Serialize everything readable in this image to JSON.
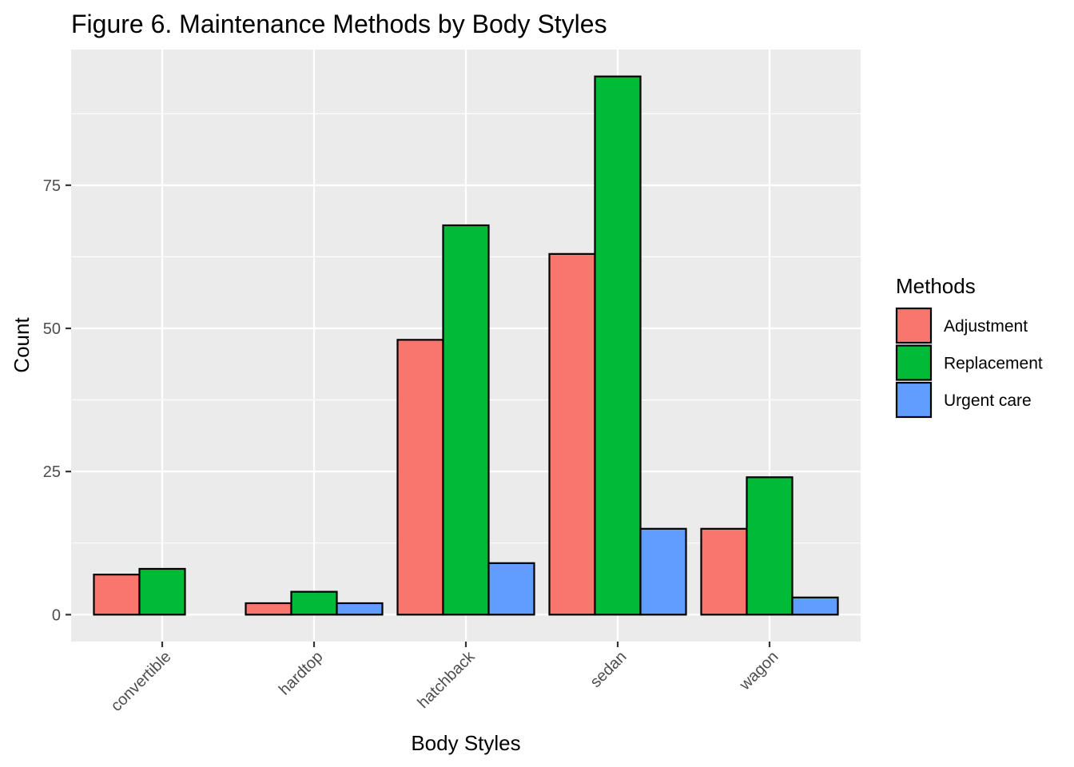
{
  "chart_data": {
    "type": "bar",
    "title": "Figure 6. Maintenance Methods by Body Styles",
    "xlabel": "Body Styles",
    "ylabel": "Count",
    "categories": [
      "convertible",
      "hardtop",
      "hatchback",
      "sedan",
      "wagon"
    ],
    "series": [
      {
        "name": "Adjustment",
        "color": "#f8766d",
        "values": [
          7,
          2,
          48,
          63,
          15
        ]
      },
      {
        "name": "Replacement",
        "color": "#00ba38",
        "values": [
          8,
          4,
          68,
          94,
          24
        ]
      },
      {
        "name": "Urgent care",
        "color": "#619cff",
        "values": [
          null,
          2,
          9,
          15,
          3
        ]
      }
    ],
    "ylim": [
      -4.7,
      98.7
    ],
    "yticks": [
      0,
      25,
      50,
      75
    ],
    "ytick_labels": [
      "0",
      "25",
      "50",
      "75"
    ],
    "grid": true,
    "legend": {
      "title": "Methods",
      "placement": "right"
    },
    "panel_background": "#ebebeb",
    "grid_color": "#ffffff"
  }
}
